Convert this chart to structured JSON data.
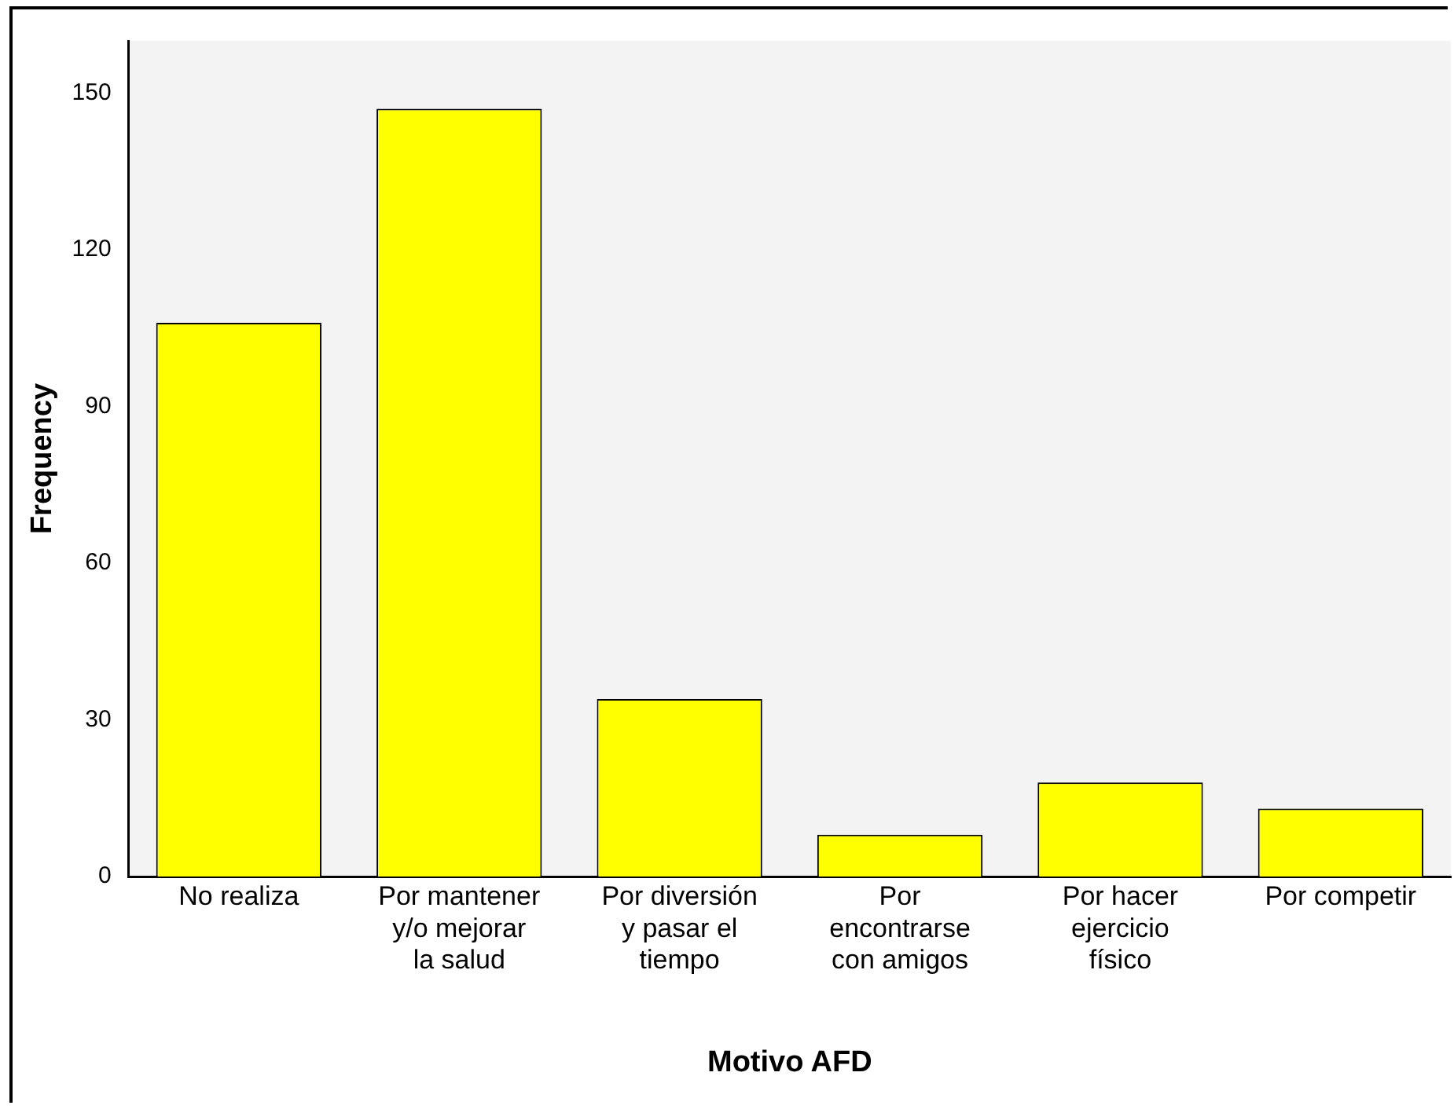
{
  "chart_data": {
    "type": "bar",
    "xlabel": "Motivo AFD",
    "ylabel": "Frequency",
    "categories": [
      "No realiza",
      "Por mantener y/o mejorar la salud",
      "Por diversión y pasar el tiempo",
      "Por encontrarse con amigos",
      "Por hacer ejercicio físico",
      "Por competir"
    ],
    "values": [
      106,
      147,
      34,
      8,
      18,
      13
    ],
    "color": "#ffff00",
    "ylim": [
      0,
      160
    ],
    "yticks": [
      0,
      30,
      60,
      90,
      120,
      150
    ],
    "grid": false,
    "legend": false
  }
}
